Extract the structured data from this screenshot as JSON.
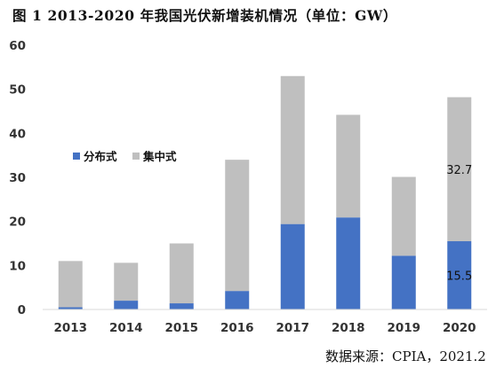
{
  "chart_data": {
    "type": "bar",
    "stacked": true,
    "title": "图 1 2013-2020 年我国光伏新增装机情况（单位：GW）",
    "categories": [
      "2013",
      "2014",
      "2015",
      "2016",
      "2017",
      "2018",
      "2019",
      "2020"
    ],
    "series": [
      {
        "name": "分布式",
        "color": "#4472c4",
        "values": [
          0.5,
          2,
          1.4,
          4.2,
          19.4,
          20.9,
          12.2,
          15.5
        ]
      },
      {
        "name": "集中式",
        "color": "#bfbfbf",
        "values": [
          10.5,
          8.6,
          13.6,
          29.8,
          33.6,
          23.3,
          17.9,
          32.7
        ]
      }
    ],
    "ylim": [
      0,
      60
    ],
    "yticks": [
      0,
      10,
      20,
      30,
      40,
      50,
      60
    ],
    "grid": false,
    "legend_position": "middle-left",
    "data_labels": [
      {
        "category": "2020",
        "series": "集中式",
        "text": "32.7"
      },
      {
        "category": "2020",
        "series": "分布式",
        "text": "15.5"
      }
    ]
  },
  "source": "数据来源：CPIA，2021.2"
}
